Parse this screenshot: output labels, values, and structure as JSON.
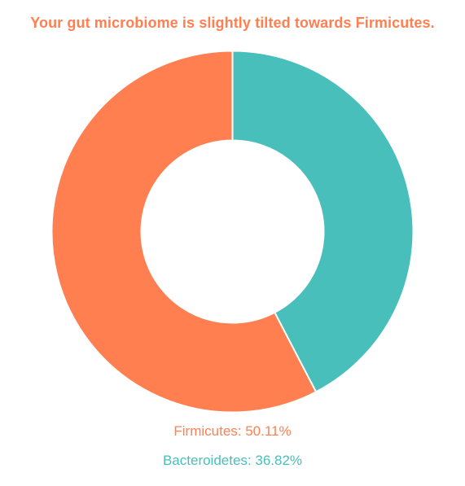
{
  "title": "Your gut microbiome is slightly tilted towards Firmicutes.",
  "chart_data": {
    "type": "pie",
    "donut": true,
    "title": "Your gut microbiome is slightly tilted towards Firmicutes.",
    "series": [
      {
        "name": "Firmicutes",
        "value": 50.11,
        "color": "#ff7f50"
      },
      {
        "name": "Bacteroidetes",
        "value": 36.82,
        "color": "#48bfbb"
      }
    ],
    "legend_position": "bottom"
  },
  "legend": {
    "firmicutes_label": "Firmicutes: 50.11%",
    "bacteroidetes_label": "Bacteroidetes: 36.82%"
  }
}
